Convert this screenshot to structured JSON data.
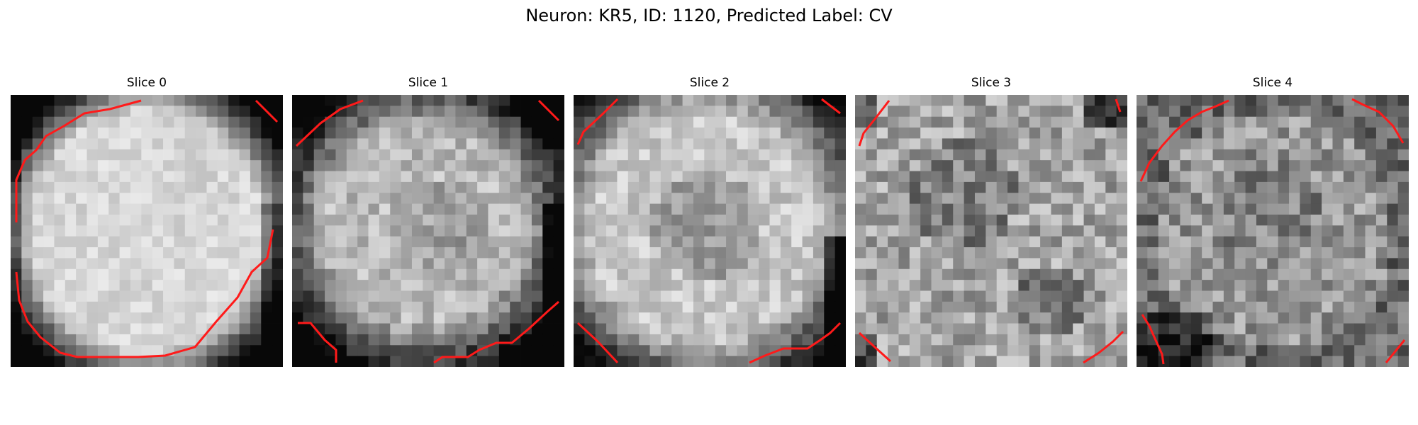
{
  "figure": {
    "title": "Neuron: KR5, ID: 1120, Predicted Label: CV"
  },
  "panels": [
    {
      "title": "Slice 0",
      "image": "bright cell body filling most of the frame, dark surround at corners and edges",
      "contour_color": "#ff1a1a"
    },
    {
      "title": "Slice 1",
      "image": "bright mottled region with dark band on right edge and dark top-right corner",
      "contour_color": "#ff1a1a"
    },
    {
      "title": "Slice 2",
      "image": "bright mottled region with darker center patch and dark right edge",
      "contour_color": "#ff1a1a"
    },
    {
      "title": "Slice 3",
      "image": "grey speckled texture with darker central area and dark top-right corner",
      "contour_color": "#ff1a1a"
    },
    {
      "title": "Slice 4",
      "image": "grey speckled texture with dark ring near edges and dark bottom-left spots",
      "contour_color": "#ff1a1a"
    }
  ]
}
